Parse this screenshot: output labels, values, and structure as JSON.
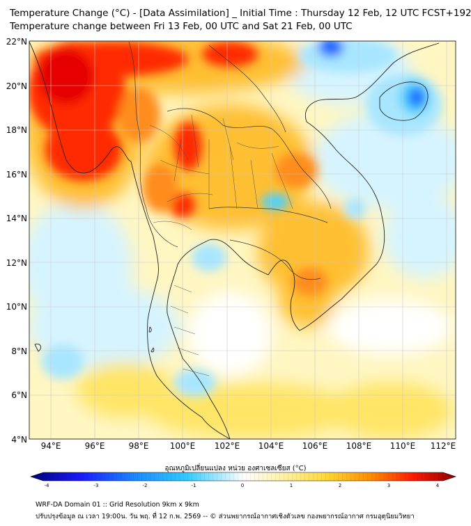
{
  "header": {
    "title_line1": "Temperature Change (°C) - [Data Assimilation] _ Initial Time : Thursday 12 Feb, 12 UTC FCST+192",
    "title_line2": "Temperature change between Fri 13 Feb, 00 UTC and Sat 21 Feb, 00 UTC"
  },
  "map": {
    "lat_labels": [
      "22°N",
      "20°N",
      "18°N",
      "16°N",
      "14°N",
      "12°N",
      "10°N",
      "8°N",
      "6°N",
      "4°N"
    ],
    "lon_labels": [
      "94°E",
      "96°E",
      "98°E",
      "100°E",
      "102°E",
      "104°E",
      "106°E",
      "108°E",
      "110°E",
      "112°E"
    ],
    "colors": {
      "dark_red": "#e60000",
      "red": "#ff2a00",
      "orange": "#ff8c1a",
      "amber": "#ffbf33",
      "yellow": "#ffe566",
      "pale_yellow": "#fff6c2",
      "white": "#ffffff",
      "pale_blue": "#d6f4ff",
      "light_blue": "#a8e6ff",
      "cyan": "#4dd2ff",
      "blue": "#1a66ff",
      "dark_blue": "#0026b3"
    }
  },
  "colorbar": {
    "title": "อุณหภูมิเปลี่ยนแปลง หน่วย องศาเซลเซียส (°C)",
    "ticks": [
      "-4",
      "-3",
      "-2",
      "-1",
      "0",
      "1",
      "2",
      "3",
      "4"
    ]
  },
  "footer": {
    "line1": "WRF-DA Domain 01 :: Grid Resolution 9km x 9km",
    "line2": "ปรับปรุงข้อมูล ณ เวลา 19:00น. วัน พฤ. ที่ 12 ก.พ. 2569 -- © ส่วนพยากรณ์อากาศเชิงตัวเลข กองพยากรณ์อากาศ กรมอุตุนิยมวิทยา"
  }
}
